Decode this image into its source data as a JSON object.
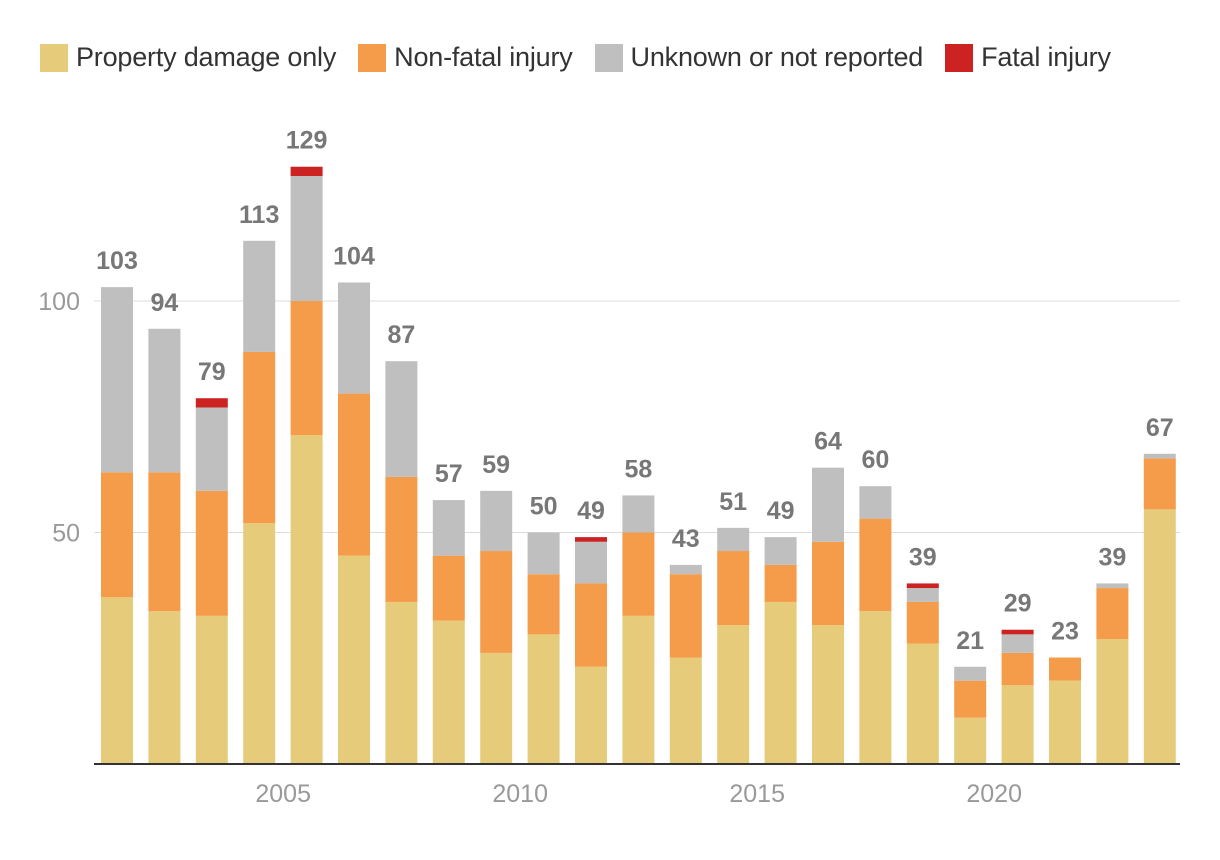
{
  "legend": [
    {
      "label": "Property damage only",
      "color": "#e6cc7a"
    },
    {
      "label": "Non-fatal injury",
      "color": "#f59c4a"
    },
    {
      "label": "Unknown or not reported",
      "color": "#bfbfbf"
    },
    {
      "label": "Fatal injury",
      "color": "#cc2222"
    }
  ],
  "chart_data": {
    "type": "bar",
    "stacked": true,
    "title": "",
    "xlabel": "",
    "ylabel": "",
    "ylim": [
      0,
      135
    ],
    "yticks": [
      50,
      100
    ],
    "x": [
      2002,
      2003,
      2004,
      2005,
      2006,
      2007,
      2008,
      2009,
      2010,
      2011,
      2012,
      2013,
      2014,
      2015,
      2016,
      2017,
      2018,
      2019,
      2020,
      2021,
      2022,
      2023,
      2024
    ],
    "xticks": [
      {
        "value": 2005,
        "label": "2005"
      },
      {
        "value": 2010,
        "label": "2010"
      },
      {
        "value": 2015,
        "label": "2015"
      },
      {
        "value": 2020,
        "label": "2020"
      }
    ],
    "series": [
      {
        "name": "Property damage only",
        "color": "#e6cc7a",
        "values": [
          36,
          33,
          32,
          52,
          71,
          45,
          35,
          31,
          24,
          28,
          21,
          32,
          23,
          30,
          35,
          30,
          33,
          26,
          10,
          17,
          18,
          27,
          55
        ]
      },
      {
        "name": "Non-fatal injury",
        "color": "#f59c4a",
        "values": [
          27,
          30,
          27,
          37,
          29,
          35,
          27,
          14,
          22,
          13,
          18,
          18,
          18,
          16,
          8,
          18,
          20,
          9,
          8,
          7,
          5,
          11,
          11
        ]
      },
      {
        "name": "Unknown or not reported",
        "color": "#bfbfbf",
        "values": [
          40,
          31,
          18,
          24,
          27,
          24,
          25,
          12,
          13,
          9,
          9,
          8,
          2,
          5,
          6,
          16,
          7,
          3,
          3,
          4,
          0,
          1,
          1
        ]
      },
      {
        "name": "Fatal injury",
        "color": "#cc2222",
        "values": [
          0,
          0,
          2,
          0,
          2,
          0,
          0,
          0,
          0,
          0,
          1,
          0,
          0,
          0,
          0,
          0,
          0,
          1,
          0,
          1,
          0,
          0,
          0
        ]
      }
    ],
    "totals": [
      103,
      94,
      79,
      113,
      129,
      104,
      87,
      57,
      59,
      50,
      49,
      58,
      43,
      51,
      49,
      64,
      60,
      39,
      21,
      29,
      23,
      39,
      67
    ],
    "grid": true,
    "legend_position": "top-left",
    "colors": {
      "gridline": "#dddddd",
      "axis": "#333333",
      "tick_text": "#999999",
      "value_text": "#777777"
    }
  }
}
